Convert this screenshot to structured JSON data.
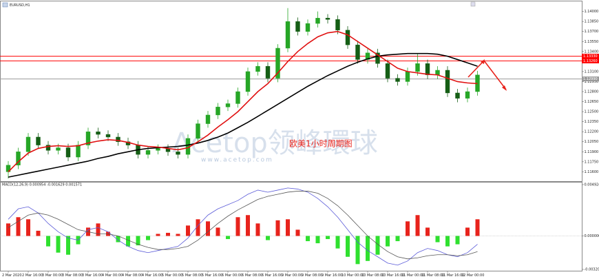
{
  "chart_data": [
    {
      "type": "candlestick",
      "title": "EURUSD,H1",
      "categories": [
        "2 Mar 2020",
        null,
        "2 Mar 16:00",
        null,
        "3 Mar 00:00",
        null,
        "3 Mar 08:00",
        null,
        "3 Mar 16:00",
        null,
        "4 Mar 00:00",
        null,
        "4 Mar 08:00",
        null,
        "4 Mar 16:00",
        null,
        "5 Mar 00:00",
        null,
        "5 Mar 08:00",
        null,
        "5 Mar 16:00",
        null,
        "6 Mar 00:00",
        null,
        "6 Mar 08:00",
        null,
        "6 Mar 16:00",
        null,
        "9 Mar 00:00",
        null,
        "9 Mar 08:00",
        null,
        "9 Mar 16:00",
        null,
        "10 Mar 00:00",
        null,
        "10 Mar 08:00",
        null,
        "10 Mar 16:00",
        null,
        "11 Mar 00:00",
        null,
        "11 Mar 08:00",
        null,
        "11 Mar 16:00",
        null,
        "12 Mar 00:00",
        null
      ],
      "open": [
        1.116,
        1.117,
        1.119,
        1.1212,
        1.12,
        1.1192,
        1.1196,
        1.1182,
        1.12,
        1.122,
        1.1216,
        1.1212,
        1.1205,
        1.12,
        1.1186,
        1.1192,
        1.1195,
        1.119,
        1.1186,
        1.121,
        1.1232,
        1.1245,
        1.1257,
        1.1262,
        1.128,
        1.131,
        1.1318,
        1.13,
        1.1345,
        1.1385,
        1.137,
        1.1382,
        1.139,
        1.1388,
        1.1372,
        1.135,
        1.1328,
        1.1338,
        1.1322,
        1.13,
        1.1295,
        1.131,
        1.1322,
        1.1305,
        1.1312,
        1.1278,
        1.127,
        1.128
      ],
      "high": [
        1.1176,
        1.1196,
        1.1218,
        1.1218,
        1.1206,
        1.1202,
        1.1202,
        1.1206,
        1.1226,
        1.1226,
        1.1222,
        1.1218,
        1.1211,
        1.1206,
        1.1198,
        1.1201,
        1.1201,
        1.1196,
        1.1216,
        1.1238,
        1.1251,
        1.1263,
        1.1268,
        1.1286,
        1.1316,
        1.1324,
        1.1324,
        1.1351,
        1.1405,
        1.1391,
        1.1388,
        1.14,
        1.1396,
        1.1394,
        1.1378,
        1.1356,
        1.1344,
        1.1344,
        1.1328,
        1.1306,
        1.1316,
        1.1336,
        1.1328,
        1.1318,
        1.1318,
        1.1284,
        1.1286,
        1.1311
      ],
      "low": [
        1.115,
        1.1164,
        1.1184,
        1.1194,
        1.1186,
        1.1186,
        1.1176,
        1.1176,
        1.1194,
        1.121,
        1.1206,
        1.1199,
        1.1194,
        1.118,
        1.118,
        1.1186,
        1.1184,
        1.118,
        1.118,
        1.1204,
        1.1226,
        1.1239,
        1.1251,
        1.1256,
        1.1274,
        1.1304,
        1.1294,
        1.1294,
        1.1339,
        1.1364,
        1.1364,
        1.1376,
        1.1382,
        1.1366,
        1.1344,
        1.1322,
        1.1322,
        1.1316,
        1.1294,
        1.1289,
        1.1289,
        1.1304,
        1.1299,
        1.1299,
        1.1272,
        1.1264,
        1.1264,
        1.1274
      ],
      "close": [
        1.117,
        1.119,
        1.1212,
        1.12,
        1.1192,
        1.1196,
        1.1182,
        1.12,
        1.122,
        1.1216,
        1.1212,
        1.1205,
        1.12,
        1.1186,
        1.1192,
        1.1195,
        1.119,
        1.1186,
        1.121,
        1.1232,
        1.1245,
        1.1257,
        1.1262,
        1.128,
        1.131,
        1.1318,
        1.13,
        1.1345,
        1.1385,
        1.137,
        1.1382,
        1.139,
        1.1388,
        1.1372,
        1.135,
        1.1328,
        1.1338,
        1.1322,
        1.13,
        1.1295,
        1.131,
        1.1322,
        1.1305,
        1.1312,
        1.1278,
        1.127,
        1.128,
        1.1305
      ],
      "up_color": "#26a626",
      "down_color": "#155e15",
      "overlays": [
        {
          "color": "#000000",
          "values": [
            1.1152,
            1.1155,
            1.1158,
            1.1161,
            1.1164,
            1.1167,
            1.117,
            1.1173,
            1.1176,
            1.118,
            1.1183,
            1.1187,
            1.119,
            1.1193,
            1.1195,
            1.1196,
            1.1197,
            1.1198,
            1.12,
            1.1203,
            1.1207,
            1.1212,
            1.1218,
            1.1226,
            1.1234,
            1.1243,
            1.1252,
            1.1261,
            1.127,
            1.1279,
            1.1288,
            1.1296,
            1.1304,
            1.1311,
            1.1318,
            1.1324,
            1.1329,
            1.1333,
            1.1335,
            1.1336,
            1.1337,
            1.1337,
            1.1337,
            1.1336,
            1.1333,
            1.1328,
            1.1323,
            1.1318
          ]
        },
        {
          "color": "#e01010",
          "values": [
            1.116,
            1.1175,
            1.1188,
            1.1195,
            1.1198,
            1.1199,
            1.1198,
            1.1199,
            1.1203,
            1.1206,
            1.1208,
            1.1207,
            1.1204,
            1.12,
            1.1198,
            1.1197,
            1.1195,
            1.1193,
            1.1196,
            1.1205,
            1.1215,
            1.1227,
            1.1238,
            1.125,
            1.1265,
            1.128,
            1.1292,
            1.1308,
            1.1325,
            1.134,
            1.1352,
            1.1362,
            1.1368,
            1.137,
            1.1365,
            1.1355,
            1.1345,
            1.1335,
            1.1325,
            1.1315,
            1.131,
            1.1308,
            1.1306,
            1.1305,
            1.13,
            1.1295,
            1.1293,
            1.1292
          ]
        }
      ],
      "levels": [
        {
          "value": 1.1333,
          "label": "1.13330",
          "color": "#ff0000"
        },
        {
          "value": 1.1326,
          "label": "1.13260",
          "color": "#ff0000"
        },
        {
          "value": 1.1299,
          "label": "1.12990",
          "color": "#9a9a9a"
        }
      ],
      "ylim": [
        1.1147,
        1.1413
      ],
      "yticks": [
        {
          "value": 1.14,
          "label": "1.14000"
        },
        {
          "value": 1.1385,
          "label": "1.13850"
        },
        {
          "value": 1.137,
          "label": "1.13700"
        },
        {
          "value": 1.1355,
          "label": "1.13550"
        },
        {
          "value": 1.134,
          "label": "1.13400"
        },
        {
          "value": 1.1325,
          "label": "1.13250"
        },
        {
          "value": 1.131,
          "label": "1.13100"
        },
        {
          "value": 1.1295,
          "label": "1.12950"
        },
        {
          "value": 1.128,
          "label": "1.12800"
        },
        {
          "value": 1.1265,
          "label": "1.12650"
        },
        {
          "value": 1.125,
          "label": "1.12500"
        },
        {
          "value": 1.1235,
          "label": "1.12350"
        },
        {
          "value": 1.122,
          "label": "1.12200"
        },
        {
          "value": 1.1205,
          "label": "1.12050"
        },
        {
          "value": 1.119,
          "label": "1.11900"
        },
        {
          "value": 1.1175,
          "label": "1.11750"
        },
        {
          "value": 1.116,
          "label": "1.11600"
        }
      ],
      "grid": false,
      "annotations": [
        "Acetop领峰環球",
        "www.acetop.com",
        "欧美1小时周期图"
      ]
    },
    {
      "type": "macd",
      "title": "MACD(12,26,9) 0.000954 -0.001629 0.001571",
      "values": [
        0.0012,
        0.0018,
        0.0016,
        0.0005,
        -0.001,
        -0.0016,
        -0.0018,
        -0.0008,
        0.0008,
        0.0012,
        0.0004,
        -0.0006,
        -0.001,
        -0.0009,
        -0.0004,
        0.0002,
        0.0003,
        0.0002,
        0.001,
        0.0016,
        0.0014,
        0.0008,
        -0.0003,
        0.0018,
        0.002,
        0.0012,
        -0.0004,
        0.0015,
        0.0016,
        0.0006,
        -0.0005,
        -0.0007,
        -0.0003,
        -0.0012,
        -0.002,
        -0.0027,
        -0.0024,
        -0.0018,
        -0.001,
        -0.0005,
        0.0014,
        0.002,
        0.0008,
        -0.0006,
        -0.001,
        -0.0008,
        0.0008,
        0.0016
      ],
      "positive_color": "#e8231c",
      "negative_color": "#2fe02f",
      "overlays": [
        {
          "color": "#5a5ad8",
          "values": [
            0.0016,
            0.0026,
            0.0028,
            0.0022,
            0.0012,
            0.0004,
            -0.0002,
            -0.0004,
            0.0006,
            0.0008,
            0.0004,
            -0.0004,
            -0.001,
            -0.0014,
            -0.0016,
            -0.0014,
            -0.0012,
            -0.001,
            -0.0002,
            0.001,
            0.002,
            0.0026,
            0.003,
            0.0034,
            0.004,
            0.0044,
            0.0042,
            0.0044,
            0.0046,
            0.0045,
            0.0042,
            0.0036,
            0.0028,
            0.0018,
            0.0006,
            -0.0006,
            -0.0014,
            -0.002,
            -0.0026,
            -0.0028,
            -0.0024,
            -0.0016,
            -0.0012,
            -0.0014,
            -0.0018,
            -0.002,
            -0.0016,
            -0.0008
          ]
        },
        {
          "color": "#555555",
          "values": [
            0.0008,
            0.0014,
            0.002,
            0.0022,
            0.002,
            0.0016,
            0.0011,
            0.0006,
            0.0004,
            0.0002,
            0.0002,
            0.0,
            -0.0004,
            -0.0008,
            -0.0011,
            -0.0013,
            -0.0013,
            -0.0012,
            -0.001,
            -0.0004,
            0.0004,
            0.0012,
            0.0019,
            0.0025,
            0.003,
            0.0035,
            0.0038,
            0.004,
            0.0042,
            0.0043,
            0.0043,
            0.0041,
            0.0036,
            0.0029,
            0.002,
            0.001,
            0.0,
            -0.0008,
            -0.0015,
            -0.002,
            -0.0022,
            -0.0021,
            -0.0019,
            -0.0018,
            -0.0018,
            -0.0019,
            -0.0018,
            -0.0015
          ]
        }
      ],
      "ylim": [
        -0.003205,
        0.004924
      ],
      "yticks": [
        0.004924,
        {
          "value": 0,
          "label": "0.000000"
        },
        -0.003205
      ]
    }
  ]
}
